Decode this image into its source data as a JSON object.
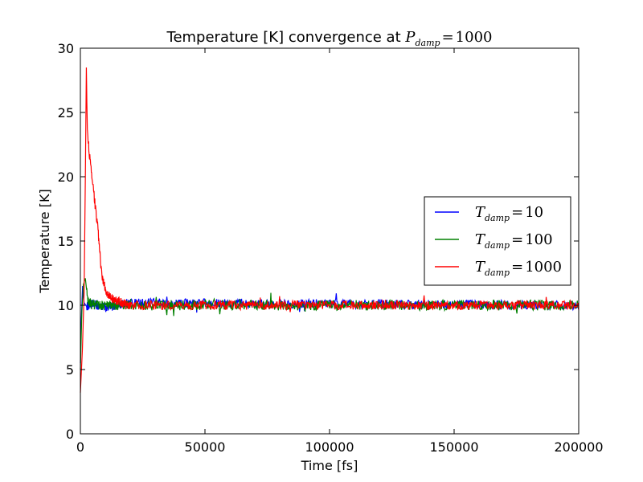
{
  "chart_data": {
    "type": "line",
    "title": {
      "prefix": "Temperature [K] convergence at ",
      "math_symbol": "P",
      "math_subscript": "damp",
      "math_eq": "=",
      "math_value": "1000"
    },
    "xlabel": "Time [fs]",
    "ylabel": "Temperature [K]",
    "xlim": [
      0,
      200000
    ],
    "ylim": [
      0,
      30
    ],
    "x_ticks": [
      0,
      50000,
      100000,
      150000,
      200000
    ],
    "x_tick_labels": [
      "0",
      "50000",
      "100000",
      "150000",
      "200000"
    ],
    "y_ticks": [
      0,
      5,
      10,
      15,
      20,
      25,
      30
    ],
    "y_tick_labels": [
      "0",
      "5",
      "10",
      "15",
      "20",
      "25",
      "30"
    ],
    "legend_position": "center-right",
    "series": [
      {
        "name": "T_damp=10",
        "legend": {
          "symbol": "T",
          "sub": "damp",
          "eq": "=",
          "value": "10"
        },
        "color": "#0000ff",
        "points": [
          [
            0,
            5.5
          ],
          [
            400,
            9.0
          ],
          [
            900,
            11.5
          ],
          [
            1500,
            10.2
          ],
          [
            2500,
            9.9
          ],
          [
            5000,
            10.1
          ],
          [
            10000,
            9.8
          ],
          [
            20000,
            10.2
          ],
          [
            200000,
            10.0
          ]
        ],
        "noise": 0.35
      },
      {
        "name": "T_damp=100",
        "legend": {
          "symbol": "T",
          "sub": "damp",
          "eq": "=",
          "value": "100"
        },
        "color": "#008000",
        "points": [
          [
            0,
            5.0
          ],
          [
            600,
            9.5
          ],
          [
            1200,
            11.6
          ],
          [
            2000,
            12.1
          ],
          [
            3000,
            10.3
          ],
          [
            5000,
            10.0
          ],
          [
            200000,
            10.0
          ]
        ],
        "noise": 0.4
      },
      {
        "name": "T_damp=1000",
        "legend": {
          "symbol": "T",
          "sub": "damp",
          "eq": "=",
          "value": "1000"
        },
        "color": "#ff0000",
        "points": [
          [
            0,
            3.2
          ],
          [
            800,
            6.5
          ],
          [
            1500,
            11.0
          ],
          [
            2000,
            20.0
          ],
          [
            2400,
            28.5
          ],
          [
            2800,
            23.5
          ],
          [
            4000,
            21.0
          ],
          [
            5500,
            18.5
          ],
          [
            7000,
            16.0
          ],
          [
            8500,
            12.5
          ],
          [
            10000,
            11.2
          ],
          [
            12000,
            10.6
          ],
          [
            15000,
            10.3
          ],
          [
            20000,
            10.0
          ],
          [
            200000,
            10.0
          ]
        ],
        "noise": 0.35
      }
    ]
  }
}
